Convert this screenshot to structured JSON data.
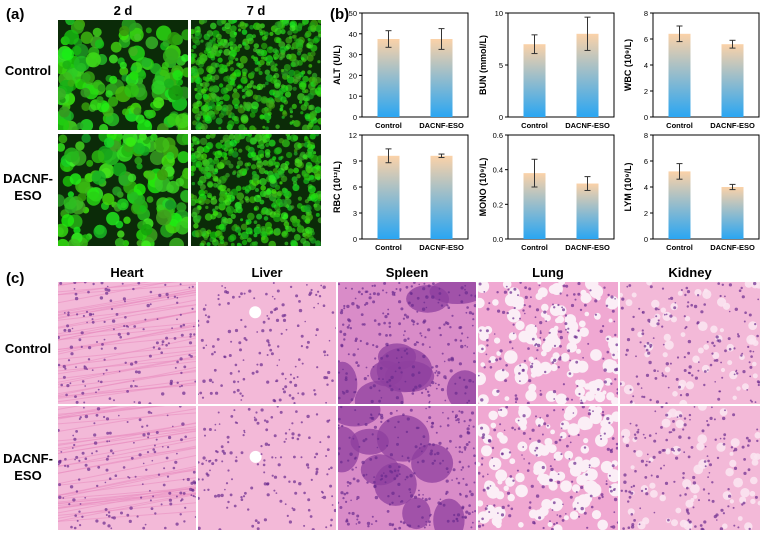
{
  "panel_a": {
    "label": "(a)",
    "columns": [
      "2 d",
      "7 d"
    ],
    "rows": [
      "Control",
      "DACNF-\nESO"
    ]
  },
  "panel_b": {
    "label": "(b)"
  },
  "panel_c": {
    "label": "(c)",
    "columns": [
      "Heart",
      "Liver",
      "Spleen",
      "Lung",
      "Kidney"
    ],
    "rows": [
      "Control",
      "DACNF-\nESO"
    ]
  },
  "colors": {
    "bar_top": "#fbd2a8",
    "bar_bottom": "#2aa6f2",
    "fluorescence": "#2fbf20",
    "he_stain": "#f0a6cf"
  },
  "chart_data": [
    {
      "type": "bar",
      "categories": [
        "Control",
        "DACNF-ESO"
      ],
      "values": [
        37.5,
        37.5
      ],
      "errors": [
        4,
        5
      ],
      "ylabel": "ALT (U/L)",
      "ylim": [
        0,
        50
      ],
      "yticks": [
        "0",
        "10",
        "20",
        "30",
        "40",
        "50"
      ]
    },
    {
      "type": "bar",
      "categories": [
        "Control",
        "DACNF-ESO"
      ],
      "values": [
        7.0,
        8.0
      ],
      "errors": [
        0.9,
        1.6
      ],
      "ylabel": "BUN (mmol/L)",
      "ylim": [
        0,
        10
      ],
      "yticks": [
        "0",
        "5",
        "10"
      ]
    },
    {
      "type": "bar",
      "categories": [
        "Control",
        "DACNF-ESO"
      ],
      "values": [
        6.4,
        5.6
      ],
      "errors": [
        0.6,
        0.3
      ],
      "ylabel": "WBC (10⁹/L)",
      "ylim": [
        0,
        8
      ],
      "yticks": [
        "0",
        "2",
        "4",
        "6",
        "8"
      ]
    },
    {
      "type": "bar",
      "categories": [
        "Control",
        "DACNF-ESO"
      ],
      "values": [
        9.6,
        9.6
      ],
      "errors": [
        0.8,
        0.2
      ],
      "ylabel": "RBC (10¹²/L)",
      "ylim": [
        0,
        12
      ],
      "yticks": [
        "0",
        "3",
        "6",
        "9",
        "12"
      ]
    },
    {
      "type": "bar",
      "categories": [
        "Control",
        "DACNF-ESO"
      ],
      "values": [
        0.38,
        0.32
      ],
      "errors": [
        0.08,
        0.04
      ],
      "ylabel": "MONO (10⁹/L)",
      "ylim": [
        0,
        0.6
      ],
      "yticks": [
        "0.0",
        "0.2",
        "0.4",
        "0.6"
      ]
    },
    {
      "type": "bar",
      "categories": [
        "Control",
        "DACNF-ESO"
      ],
      "values": [
        5.2,
        4.0
      ],
      "errors": [
        0.6,
        0.2
      ],
      "ylabel": "LYM (10⁹/L)",
      "ylim": [
        0,
        8
      ],
      "yticks": [
        "0",
        "2",
        "4",
        "6",
        "8"
      ]
    }
  ]
}
